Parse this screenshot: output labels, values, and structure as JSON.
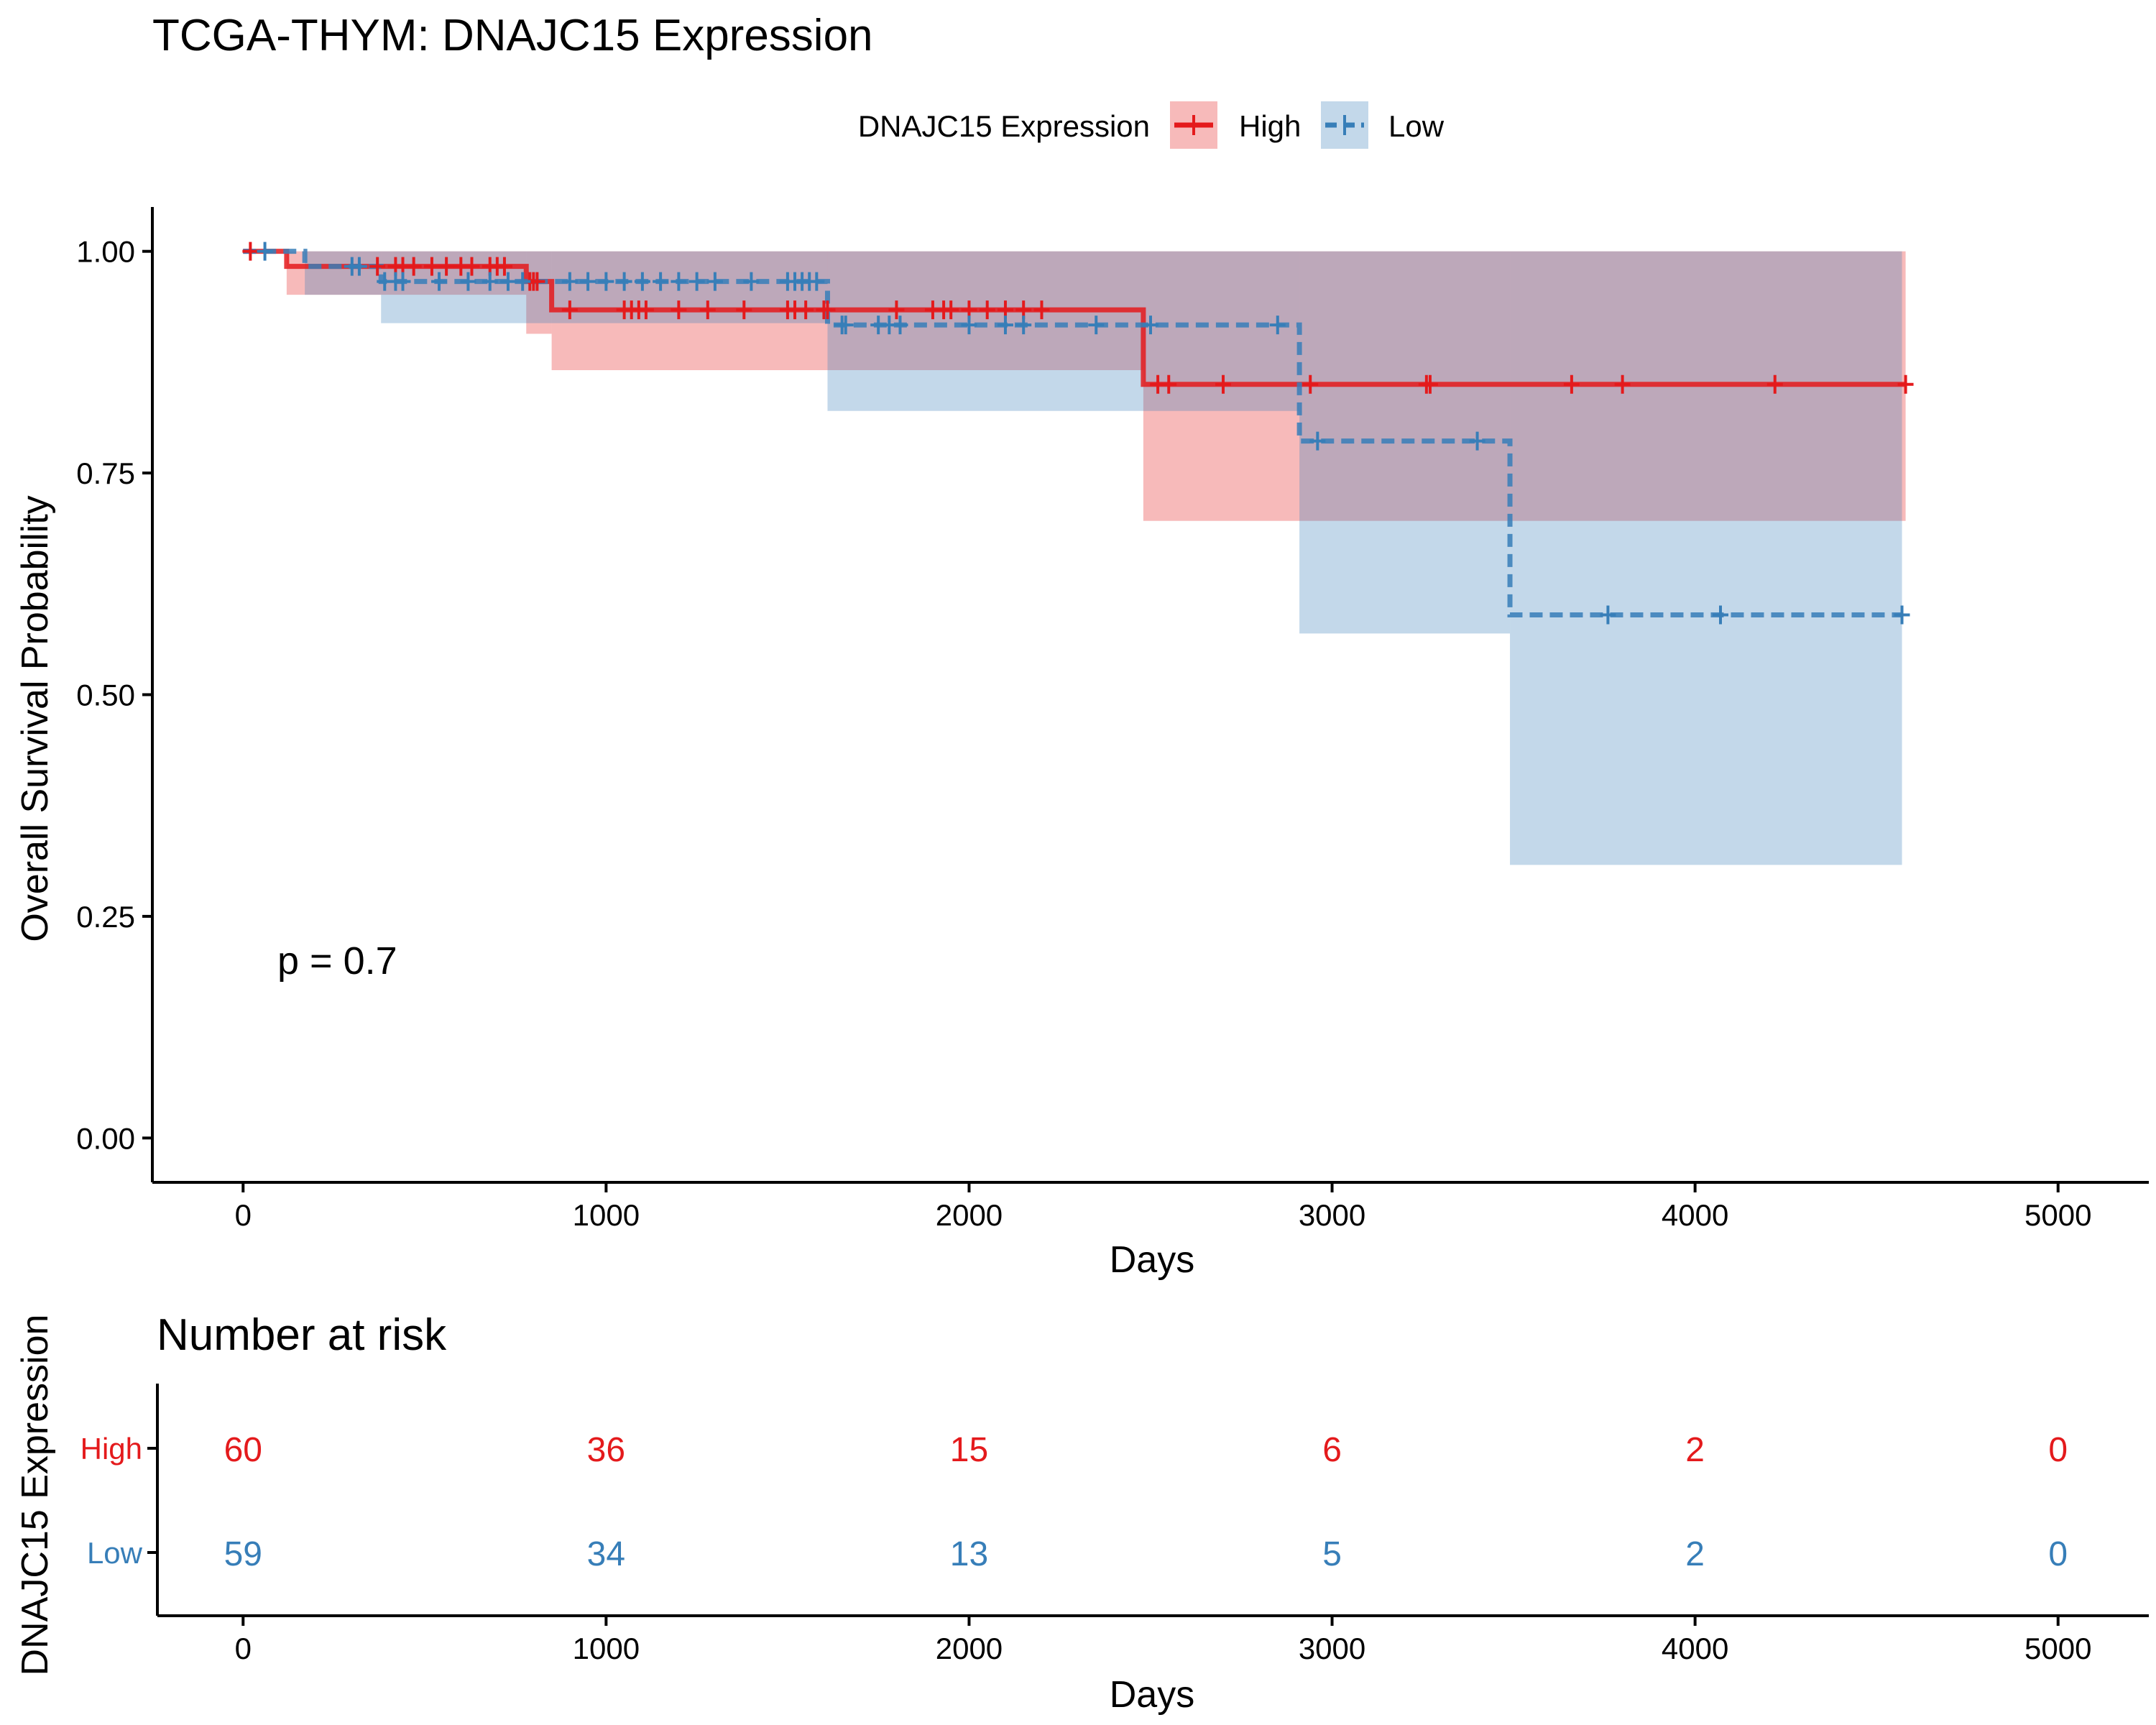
{
  "chart_data": [
    {
      "type": "line",
      "subtype": "kaplan-meier",
      "title": "TCGA-THYM: DNAJC15 Expression",
      "xlabel": "Days",
      "ylabel": "Overall Survival Probability",
      "xlim": [
        -250,
        5250
      ],
      "ylim": [
        -0.05,
        1.05
      ],
      "xticks": [
        0,
        1000,
        2000,
        3000,
        4000,
        5000
      ],
      "yticks": [
        "0.00",
        "0.25",
        "0.50",
        "0.75",
        "1.00"
      ],
      "yticks_values": [
        0,
        0.25,
        0.5,
        0.75,
        1.0
      ],
      "grid": false,
      "legend": {
        "title": "DNAJC15 Expression",
        "position": "top"
      },
      "annotation": "p = 0.7",
      "series": [
        {
          "name": "High",
          "color": "#E41A1C",
          "line_style": "solid",
          "steps": [
            {
              "x": 0,
              "y": 1.0
            },
            {
              "x": 120,
              "y": 0.983
            },
            {
              "x": 780,
              "y": 0.966
            },
            {
              "x": 850,
              "y": 0.934
            },
            {
              "x": 2480,
              "y": 0.85
            },
            {
              "x": 4580,
              "y": 0.85
            }
          ],
          "ci_bands": [
            {
              "x0": 0,
              "x1": 120,
              "lo": 1.0,
              "hi": 1.0
            },
            {
              "x0": 120,
              "x1": 780,
              "lo": 0.951,
              "hi": 1.0
            },
            {
              "x0": 780,
              "x1": 850,
              "lo": 0.907,
              "hi": 1.0
            },
            {
              "x0": 850,
              "x1": 2480,
              "lo": 0.866,
              "hi": 1.0
            },
            {
              "x0": 2480,
              "x1": 4580,
              "lo": 0.696,
              "hi": 1.0
            }
          ],
          "censor_x": [
            20,
            370,
            420,
            440,
            470,
            520,
            560,
            600,
            630,
            680,
            700,
            720,
            790,
            800,
            810,
            900,
            1050,
            1070,
            1090,
            1110,
            1200,
            1280,
            1380,
            1500,
            1520,
            1550,
            1600,
            1610,
            1800,
            1900,
            1930,
            1950,
            2000,
            2050,
            2100,
            2150,
            2200,
            2520,
            2550,
            2700,
            2940,
            3260,
            3270,
            3660,
            3800,
            4220,
            4580
          ]
        },
        {
          "name": "Low",
          "color": "#377EB8",
          "line_style": "dashed",
          "steps": [
            {
              "x": 0,
              "y": 1.0
            },
            {
              "x": 170,
              "y": 0.983
            },
            {
              "x": 380,
              "y": 0.966
            },
            {
              "x": 1610,
              "y": 0.917
            },
            {
              "x": 2910,
              "y": 0.786
            },
            {
              "x": 3490,
              "y": 0.59
            },
            {
              "x": 4570,
              "y": 0.59
            }
          ],
          "ci_bands": [
            {
              "x0": 0,
              "x1": 170,
              "lo": 1.0,
              "hi": 1.0
            },
            {
              "x0": 170,
              "x1": 380,
              "lo": 0.951,
              "hi": 1.0
            },
            {
              "x0": 380,
              "x1": 1610,
              "lo": 0.919,
              "hi": 1.0
            },
            {
              "x0": 1610,
              "x1": 2910,
              "lo": 0.82,
              "hi": 1.0
            },
            {
              "x0": 2910,
              "x1": 3490,
              "lo": 0.569,
              "hi": 1.0
            },
            {
              "x0": 3490,
              "x1": 4570,
              "lo": 0.308,
              "hi": 1.0
            }
          ],
          "censor_x": [
            60,
            300,
            320,
            390,
            420,
            440,
            540,
            620,
            680,
            730,
            770,
            900,
            950,
            1000,
            1050,
            1100,
            1150,
            1200,
            1250,
            1300,
            1400,
            1500,
            1520,
            1540,
            1560,
            1580,
            1650,
            1660,
            1750,
            1780,
            1810,
            2000,
            2100,
            2150,
            2350,
            2500,
            2850,
            2960,
            3400,
            3760,
            4070,
            4570
          ]
        }
      ]
    },
    {
      "type": "table",
      "title": "Number at risk",
      "xlabel": "Days",
      "ylabel": "DNAJC15 Expression",
      "xlim": [
        -250,
        5250
      ],
      "xticks": [
        0,
        1000,
        2000,
        3000,
        4000,
        5000
      ],
      "rows": [
        {
          "name": "High",
          "color": "#E41A1C",
          "values": [
            60,
            36,
            15,
            6,
            2,
            0
          ]
        },
        {
          "name": "Low",
          "color": "#377EB8",
          "values": [
            59,
            34,
            13,
            5,
            2,
            0
          ]
        }
      ]
    }
  ]
}
